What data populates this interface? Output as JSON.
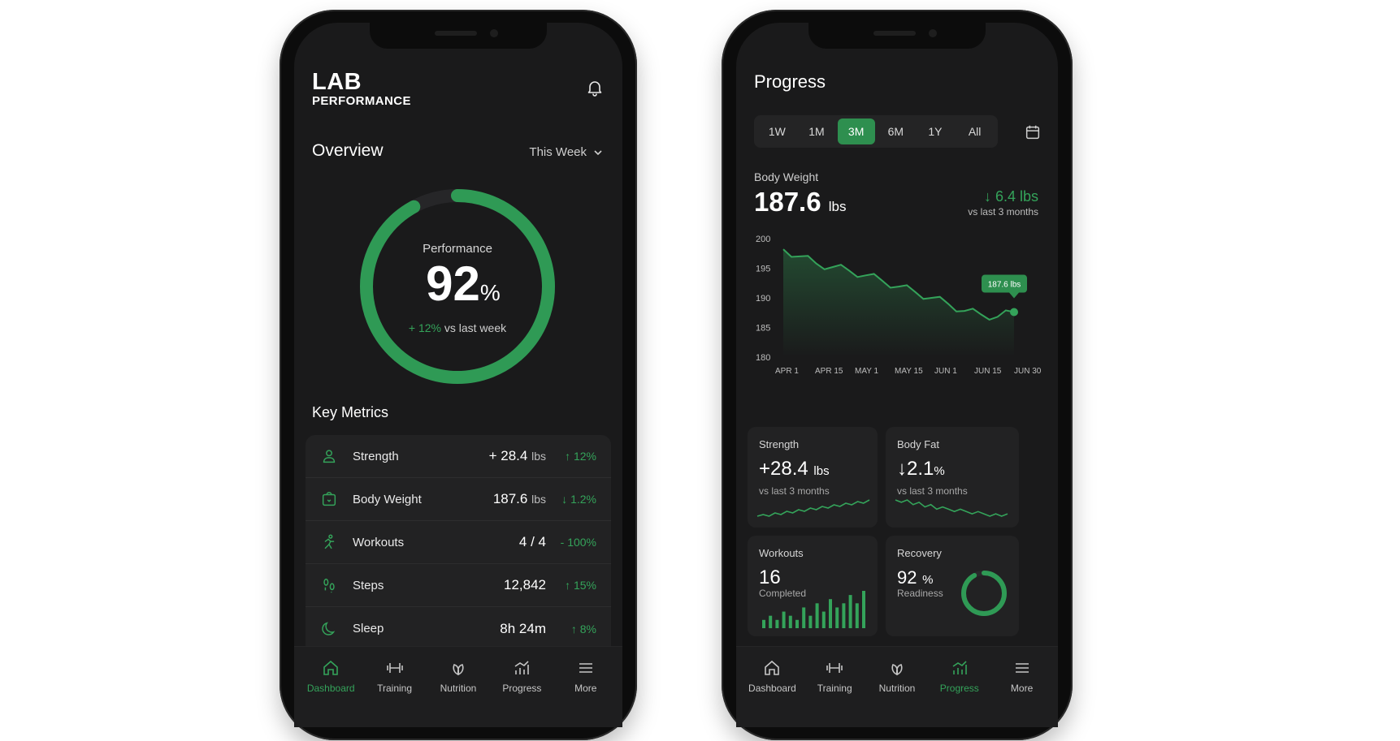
{
  "left": {
    "brand_line1": "LAB",
    "brand_line2": "PERFORMANCE",
    "overview_title": "Overview",
    "range_label": "This Week",
    "ring": {
      "label": "Performance",
      "value": "92",
      "unit": "%",
      "change": "+ 12%",
      "change_suffix": "vs last week",
      "fraction": 0.92
    },
    "key_metrics_title": "Key Metrics",
    "metrics": [
      {
        "name": "Strength",
        "value": "+ 28.4",
        "unit": "lbs",
        "change": "↑ 12%",
        "icon": "person-icon"
      },
      {
        "name": "Body Weight",
        "value": "187.6",
        "unit": "lbs",
        "change": "↓ 1.2%",
        "icon": "scale-icon"
      },
      {
        "name": "Workouts",
        "value": "4 / 4",
        "unit": "",
        "change": "- 100%",
        "icon": "running-icon"
      },
      {
        "name": "Steps",
        "value": "12,842",
        "unit": "",
        "change": "↑ 15%",
        "icon": "footsteps-icon"
      },
      {
        "name": "Sleep",
        "value": "8h 24m",
        "unit": "",
        "change": "↑ 8%",
        "icon": "moon-icon"
      }
    ]
  },
  "tabs": [
    "Dashboard",
    "Training",
    "Nutrition",
    "Progress",
    "More"
  ],
  "right": {
    "title": "Progress",
    "ranges": [
      "1W",
      "1M",
      "3M",
      "6M",
      "1Y",
      "All"
    ],
    "active_range": "3M",
    "body_weight": {
      "label": "Body Weight",
      "value": "187.6",
      "unit": "lbs",
      "change": "↓ 6.4 lbs",
      "change_sub": "vs last 3 months",
      "tooltip": "187.6 lbs"
    },
    "cards": {
      "strength": {
        "title": "Strength",
        "value": "+28.4",
        "unit": "lbs",
        "sub": "vs last 3 months"
      },
      "bodyfat": {
        "title": "Body Fat",
        "value": "↓2.1",
        "unit": "%",
        "sub": "vs last 3 months"
      },
      "workouts": {
        "title": "Workouts",
        "value": "16",
        "sub": "Completed"
      },
      "recovery": {
        "title": "Recovery",
        "value": "92",
        "unit": "%",
        "sub": "Readiness",
        "fraction": 0.92
      }
    }
  },
  "chart_data": [
    {
      "type": "line",
      "title": "",
      "ylabel": "",
      "ylim": [
        180,
        200
      ],
      "yticks": [
        "200",
        "195",
        "190",
        "185",
        "180"
      ],
      "xticks": [
        "APR 1",
        "APR 15",
        "MAY 1",
        "MAY 15",
        "JUN 1",
        "JUN 15",
        "JUN 30"
      ],
      "x": [
        "APR 1",
        "APR 5",
        "APR 10",
        "APR 15",
        "APR 20",
        "APR 25",
        "MAY 1",
        "MAY 8",
        "MAY 15",
        "MAY 22",
        "JUN 1",
        "JUN 8",
        "JUN 15",
        "JUN 22",
        "JUN 30"
      ],
      "values": [
        198.2,
        197.0,
        195.8,
        195.2,
        194.6,
        193.8,
        192.9,
        191.9,
        191.0,
        190.0,
        189.0,
        187.8,
        187.2,
        186.8,
        187.6
      ]
    },
    {
      "type": "bar",
      "title": "",
      "values": [
        2,
        3,
        2,
        4,
        3,
        2,
        5,
        3,
        6,
        4,
        7,
        5,
        6,
        8,
        6,
        9
      ]
    }
  ],
  "sparks": {
    "strength": [
      2,
      3,
      2,
      4,
      3,
      5,
      4,
      6,
      5,
      7,
      6,
      8,
      7,
      9,
      8,
      10,
      9,
      11,
      10,
      12
    ],
    "bodyfat": [
      10,
      9,
      10,
      8,
      9,
      7,
      8,
      6,
      7,
      6,
      5,
      6,
      5,
      4,
      5,
      4,
      3,
      4,
      3,
      4
    ]
  },
  "colors": {
    "accent": "#34a35a",
    "bg": "#1a1a1b",
    "card": "#222223"
  }
}
